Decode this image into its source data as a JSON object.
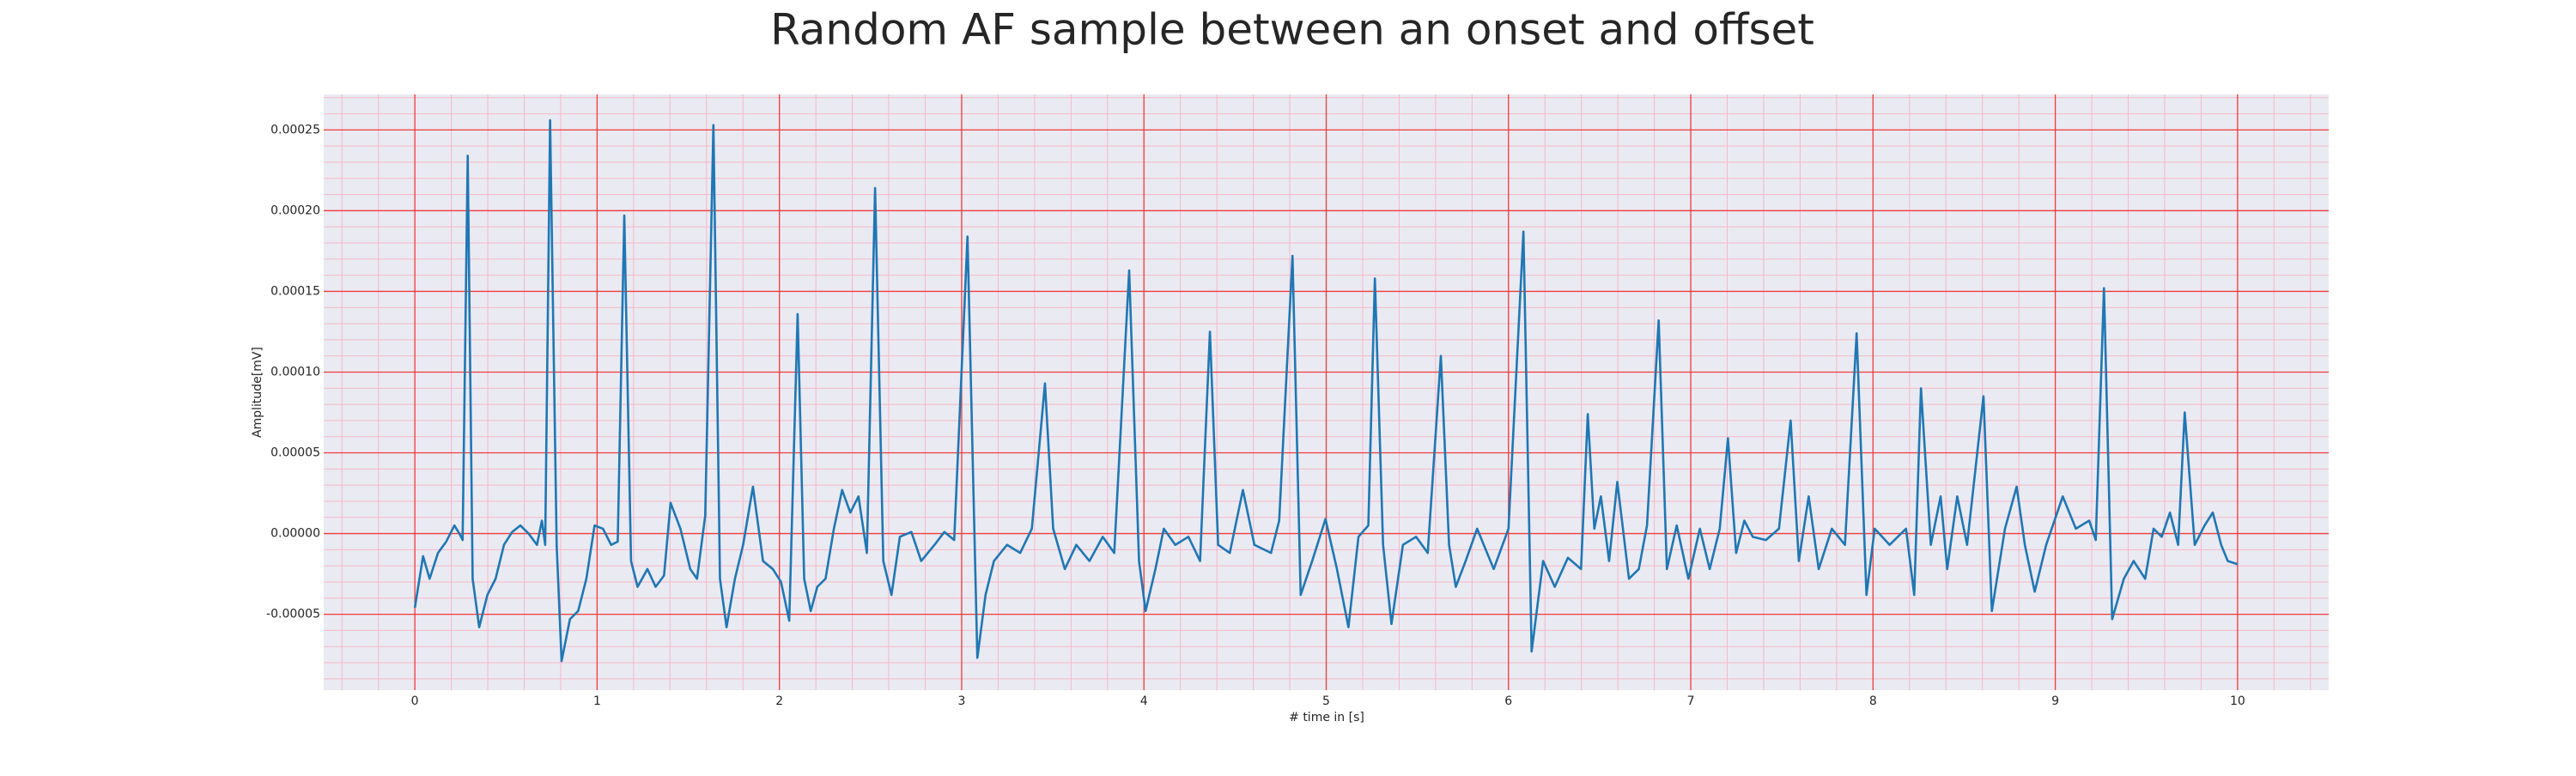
{
  "chart_data": {
    "type": "line",
    "title": "Random AF sample between an onset and offset",
    "x_label": "# time in [s]",
    "y_label": "Amplitude[mV]",
    "color": "#1f77b4",
    "grid": true,
    "minor_grid": true,
    "xlim": [
      -0.5,
      10.5
    ],
    "ylim": [
      -9.7e-05,
      0.000272
    ],
    "xticks": [
      0,
      1,
      2,
      3,
      4,
      5,
      6,
      7,
      8,
      9,
      10
    ],
    "yticks": [
      -5e-05,
      {
        "value": 0,
        "label": "0.00000"
      },
      5e-05,
      {
        "value": 0.0001,
        "label": "0.00010"
      },
      0.00015,
      {
        "value": 0.0002,
        "label": "0.00020"
      },
      0.00025
    ],
    "x": [
      0,
      0.045,
      0.081,
      0.127,
      0.172,
      0.217,
      0.244,
      0.262,
      0.29,
      0.317,
      0.353,
      0.398,
      0.443,
      0.489,
      0.534,
      0.579,
      0.624,
      0.67,
      0.697,
      0.715,
      0.742,
      0.778,
      0.805,
      0.851,
      0.896,
      0.941,
      0.986,
      1.032,
      1.077,
      1.113,
      1.149,
      1.186,
      1.222,
      1.276,
      1.321,
      1.367,
      1.403,
      1.457,
      1.511,
      1.548,
      1.593,
      1.638,
      1.674,
      1.71,
      1.756,
      1.801,
      1.855,
      1.91,
      1.964,
      2.009,
      2.054,
      2.1,
      2.136,
      2.172,
      2.208,
      2.253,
      2.299,
      2.344,
      2.389,
      2.434,
      2.48,
      2.525,
      2.57,
      2.615,
      2.661,
      2.724,
      2.778,
      2.851,
      2.905,
      2.959,
      3.032,
      3.086,
      3.131,
      3.177,
      3.249,
      3.321,
      3.385,
      3.457,
      3.502,
      3.566,
      3.629,
      3.701,
      3.774,
      3.837,
      3.919,
      3.973,
      4.009,
      4.063,
      4.109,
      4.172,
      4.244,
      4.308,
      4.362,
      4.407,
      4.471,
      4.543,
      4.606,
      4.697,
      4.742,
      4.815,
      4.86,
      4.923,
      4.996,
      5.059,
      5.122,
      5.177,
      5.231,
      5.267,
      5.312,
      5.358,
      5.421,
      5.493,
      5.557,
      5.629,
      5.674,
      5.711,
      5.765,
      5.828,
      5.919,
      6.0,
      6.082,
      6.127,
      6.19,
      6.254,
      6.326,
      6.398,
      6.435,
      6.471,
      6.507,
      6.552,
      6.597,
      6.661,
      6.715,
      6.76,
      6.824,
      6.869,
      6.923,
      6.987,
      7.05,
      7.104,
      7.159,
      7.204,
      7.249,
      7.294,
      7.34,
      7.412,
      7.484,
      7.548,
      7.593,
      7.647,
      7.702,
      7.774,
      7.846,
      7.91,
      7.964,
      8.009,
      8.091,
      8.181,
      8.226,
      8.263,
      8.317,
      8.371,
      8.407,
      8.462,
      8.516,
      8.606,
      8.652,
      8.724,
      8.788,
      8.833,
      8.887,
      8.95,
      9.041,
      9.113,
      9.186,
      9.222,
      9.267,
      9.312,
      9.376,
      9.43,
      9.493,
      9.539,
      9.584,
      9.629,
      9.674,
      9.71,
      9.765,
      9.819,
      9.864,
      9.91,
      9.946,
      10.0
    ],
    "values": [
      -4.6e-05,
      -1.4e-05,
      -2.8e-05,
      -1.2e-05,
      -5e-06,
      5e-06,
      0,
      -4e-06,
      0.000234,
      -2.8e-05,
      -5.8e-05,
      -3.8e-05,
      -2.8e-05,
      -7e-06,
      1e-06,
      5e-06,
      0,
      -7e-06,
      8e-06,
      -7e-06,
      0.000256,
      -7e-06,
      -7.9e-05,
      -5.3e-05,
      -4.8e-05,
      -2.8e-05,
      5e-06,
      3e-06,
      -7e-06,
      -5e-06,
      0.000197,
      -1.7e-05,
      -3.3e-05,
      -2.2e-05,
      -3.3e-05,
      -2.6e-05,
      1.9e-05,
      3e-06,
      -2.2e-05,
      -2.8e-05,
      1.1e-05,
      0.000253,
      -2.8e-05,
      -5.8e-05,
      -2.8e-05,
      -7e-06,
      2.9e-05,
      -1.7e-05,
      -2.2e-05,
      -3e-05,
      -5.4e-05,
      0.000136,
      -2.8e-05,
      -4.8e-05,
      -3.3e-05,
      -2.8e-05,
      3e-06,
      2.7e-05,
      1.3e-05,
      2.3e-05,
      -1.2e-05,
      0.000214,
      -1.7e-05,
      -3.8e-05,
      -2e-06,
      1e-06,
      -1.7e-05,
      -7e-06,
      1e-06,
      -4e-06,
      0.000184,
      -7.7e-05,
      -3.8e-05,
      -1.7e-05,
      -7e-06,
      -1.2e-05,
      3e-06,
      9.3e-05,
      3e-06,
      -2.2e-05,
      -7e-06,
      -1.7e-05,
      -2e-06,
      -1.2e-05,
      0.000163,
      -1.7e-05,
      -4.8e-05,
      -2.2e-05,
      3e-06,
      -7e-06,
      -2e-06,
      -1.7e-05,
      0.000125,
      -7e-06,
      -1.2e-05,
      2.7e-05,
      -7e-06,
      -1.2e-05,
      8e-06,
      0.000172,
      -3.8e-05,
      -1.7e-05,
      9e-06,
      -2.2e-05,
      -5.8e-05,
      -2e-06,
      5e-06,
      0.000158,
      -7e-06,
      -5.6e-05,
      -7e-06,
      -2e-06,
      -1.2e-05,
      0.00011,
      -7e-06,
      -3.3e-05,
      -1.7e-05,
      3e-06,
      -2.2e-05,
      3e-06,
      0.000187,
      -7.3e-05,
      -1.7e-05,
      -3.3e-05,
      -1.5e-05,
      -2.2e-05,
      7.4e-05,
      3e-06,
      2.3e-05,
      -1.7e-05,
      3.2e-05,
      -2.8e-05,
      -2.2e-05,
      5e-06,
      0.000132,
      -2.2e-05,
      5e-06,
      -2.8e-05,
      3e-06,
      -2.2e-05,
      3e-06,
      5.9e-05,
      -1.2e-05,
      8e-06,
      -2e-06,
      -4e-06,
      3e-06,
      7e-05,
      -1.7e-05,
      2.3e-05,
      -2.2e-05,
      3e-06,
      -7e-06,
      0.000124,
      -3.8e-05,
      3e-06,
      -7e-06,
      3e-06,
      -3.8e-05,
      9e-05,
      -7e-06,
      2.3e-05,
      -2.2e-05,
      2.3e-05,
      -7e-06,
      8.5e-05,
      -4.8e-05,
      3e-06,
      2.9e-05,
      -7e-06,
      -3.6e-05,
      -7e-06,
      2.3e-05,
      3e-06,
      8e-06,
      -4e-06,
      0.000152,
      -5.3e-05,
      -2.8e-05,
      -1.7e-05,
      -2.8e-05,
      3e-06,
      -2e-06,
      1.3e-05,
      -7e-06,
      7.5e-05,
      -7e-06,
      5e-06,
      1.3e-05,
      -7e-06,
      -1.7e-05,
      -1.9e-05
    ]
  }
}
